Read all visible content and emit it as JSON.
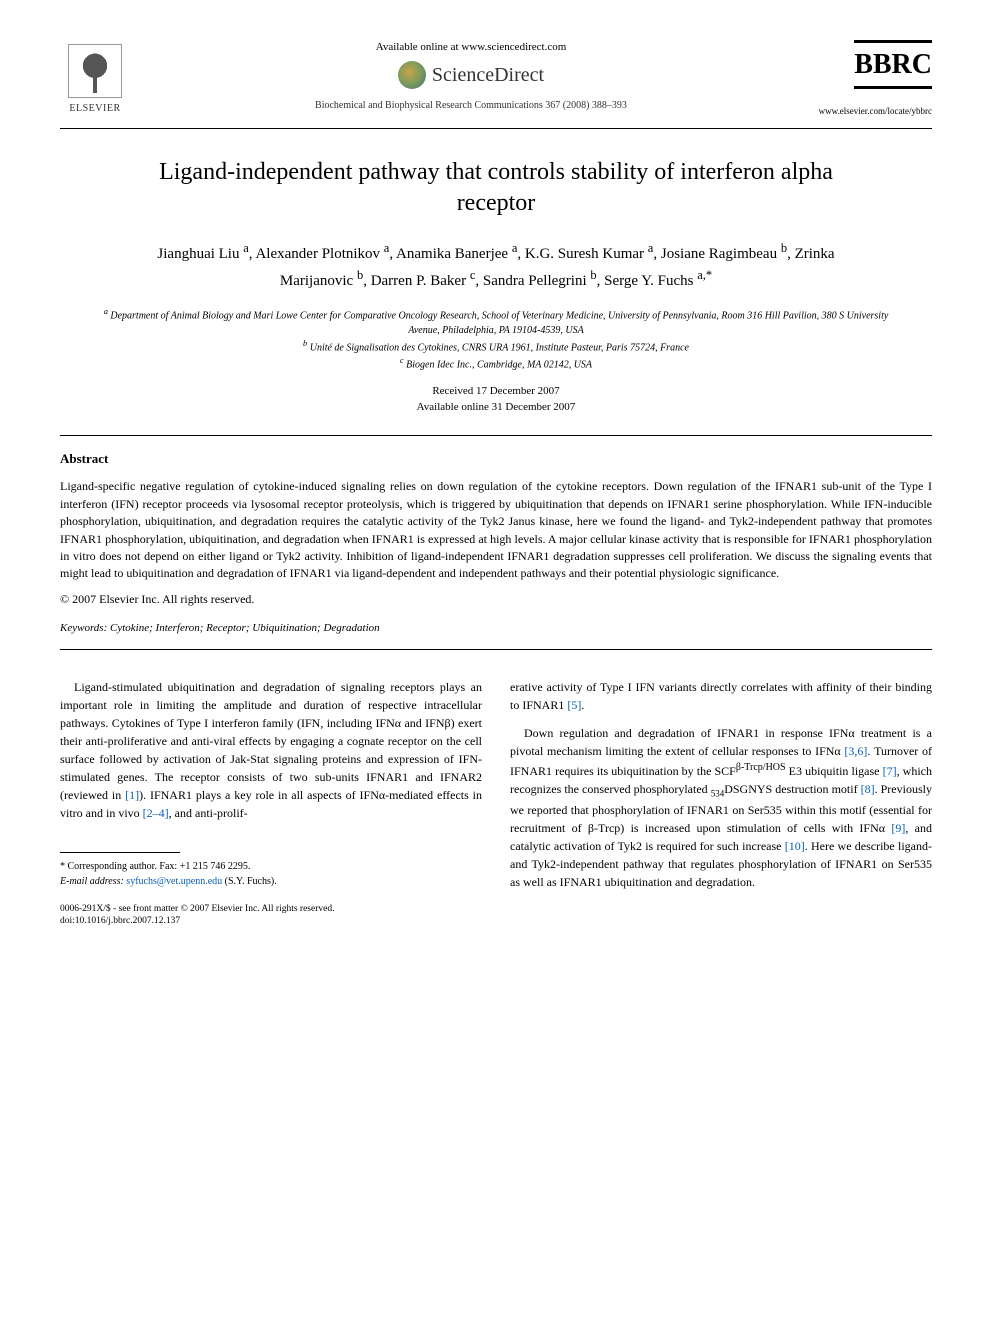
{
  "header": {
    "elsevier_label": "ELSEVIER",
    "available_online": "Available online at www.sciencedirect.com",
    "sciencedirect": "ScienceDirect",
    "journal_ref": "Biochemical and Biophysical Research Communications 367 (2008) 388–393",
    "bbrc": "BBRC",
    "journal_url": "www.elsevier.com/locate/ybbrc"
  },
  "title": "Ligand-independent pathway that controls stability of interferon alpha receptor",
  "authors_html": "Jianghuai Liu <sup>a</sup>, Alexander Plotnikov <sup>a</sup>, Anamika Banerjee <sup>a</sup>, K.G. Suresh Kumar <sup>a</sup>, Josiane Ragimbeau <sup>b</sup>, Zrinka Marijanovic <sup>b</sup>, Darren P. Baker <sup>c</sup>, Sandra Pellegrini <sup>b</sup>, Serge Y. Fuchs <sup>a,*</sup>",
  "affiliations": {
    "a": "Department of Animal Biology and Mari Lowe Center for Comparative Oncology Research, School of Veterinary Medicine, University of Pennsylvania, Room 316 Hill Pavilion, 380 S University Avenue, Philadelphia, PA 19104-4539, USA",
    "b": "Unité de Signalisation des Cytokines, CNRS URA 1961, Institute Pasteur, Paris 75724, France",
    "c": "Biogen Idec Inc., Cambridge, MA 02142, USA"
  },
  "dates": {
    "received": "Received 17 December 2007",
    "online": "Available online 31 December 2007"
  },
  "abstract": {
    "heading": "Abstract",
    "body": "Ligand-specific negative regulation of cytokine-induced signaling relies on down regulation of the cytokine receptors. Down regulation of the IFNAR1 sub-unit of the Type I interferon (IFN) receptor proceeds via lysosomal receptor proteolysis, which is triggered by ubiquitination that depends on IFNAR1 serine phosphorylation. While IFN-inducible phosphorylation, ubiquitination, and degradation requires the catalytic activity of the Tyk2 Janus kinase, here we found the ligand- and Tyk2-independent pathway that promotes IFNAR1 phosphorylation, ubiquitination, and degradation when IFNAR1 is expressed at high levels. A major cellular kinase activity that is responsible for IFNAR1 phosphorylation in vitro does not depend on either ligand or Tyk2 activity. Inhibition of ligand-independent IFNAR1 degradation suppresses cell proliferation. We discuss the signaling events that might lead to ubiquitination and degradation of IFNAR1 via ligand-dependent and independent pathways and their potential physiologic significance.",
    "copyright": "© 2007 Elsevier Inc. All rights reserved."
  },
  "keywords": {
    "label": "Keywords:",
    "list": "Cytokine; Interferon; Receptor; Ubiquitination; Degradation"
  },
  "body": {
    "col1": {
      "p1_pre": "Ligand-stimulated ubiquitination and degradation of signaling receptors plays an important role in limiting the amplitude and duration of respective intracellular pathways. Cytokines of Type I interferon family (IFN, including IFNα and IFNβ) exert their anti-proliferative and anti-viral effects by engaging a cognate receptor on the cell surface followed by activation of Jak-Stat signaling proteins and expression of IFN-stimulated genes. The receptor consists of two sub-units IFNAR1 and IFNAR2 (reviewed in ",
      "ref1": "[1]",
      "p1_mid": "). IFNAR1 plays a key role in all aspects of IFNα-mediated effects in vitro and in vivo ",
      "ref2": "[2–4]",
      "p1_post": ", and anti-prolif-"
    },
    "col2": {
      "p1_pre": "erative activity of Type I IFN variants directly correlates with affinity of their binding to IFNAR1 ",
      "ref5": "[5]",
      "p1_post": ".",
      "p2_pre": "Down regulation and degradation of IFNAR1 in response IFNα treatment is a pivotal mechanism limiting the extent of cellular responses to IFNα ",
      "ref36": "[3,6]",
      "p2_mid1": ". Turnover of IFNAR1 requires its ubiquitination by the SCF",
      "scf_sup": "β-Trcp/HOS",
      "p2_mid2": " E3 ubiquitin ligase ",
      "ref7": "[7]",
      "p2_mid3": ", which recognizes the conserved phosphorylated ",
      "motif_sub": "534",
      "motif": "DSGNYS destruction motif ",
      "ref8": "[8]",
      "p2_mid4": ". Previously we reported that phosphorylation of IFNAR1 on Ser535 within this motif (essential for recruitment of β-Trcp) is increased upon stimulation of cells with IFNα ",
      "ref9": "[9]",
      "p2_mid5": ", and catalytic activation of Tyk2 is required for such increase ",
      "ref10": "[10]",
      "p2_post": ". Here we describe ligand- and Tyk2-independent pathway that regulates phosphorylation of IFNAR1 on Ser535 as well as IFNAR1 ubiquitination and degradation."
    }
  },
  "footer": {
    "corr_label": "* Corresponding author. Fax: +1 215 746 2295.",
    "email_label": "E-mail address:",
    "email": "syfuchs@vet.upenn.edu",
    "email_person": "(S.Y. Fuchs).",
    "issn_line": "0006-291X/$ - see front matter © 2007 Elsevier Inc. All rights reserved.",
    "doi_line": "doi:10.1016/j.bbrc.2007.12.137"
  },
  "colors": {
    "text": "#000000",
    "link": "#0a5fb5",
    "background": "#ffffff"
  }
}
